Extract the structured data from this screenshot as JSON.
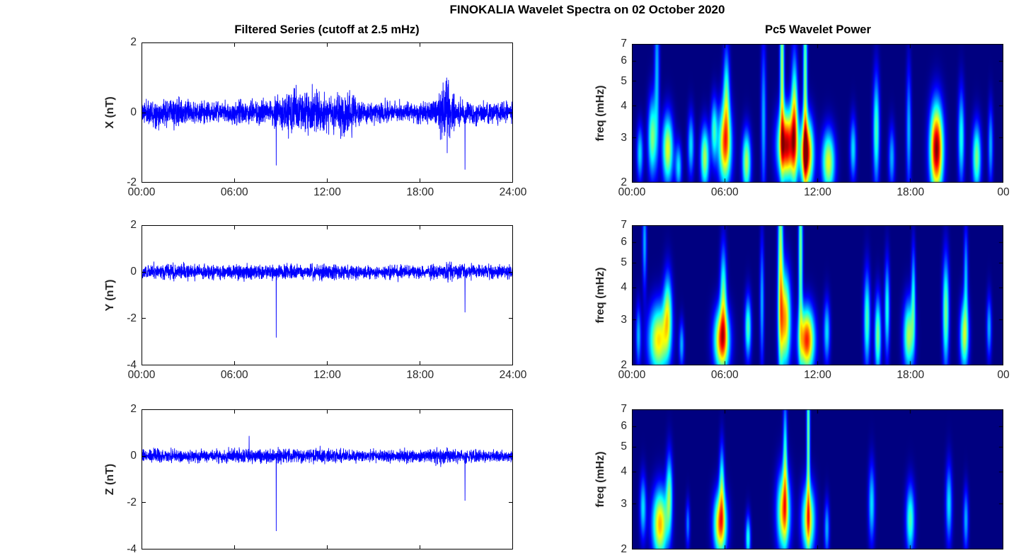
{
  "figure": {
    "title": "FINOKALIA Wavelet Spectra on 02 October 2020",
    "left_column_title": "Filtered Series (cutoff at 2.5 mHz)",
    "right_column_title": "Pc5 Wavelet Power",
    "colors": {
      "background": "#ffffff",
      "line": "#0000ff",
      "axis": "#000000",
      "text": "#262626",
      "heatmap_low": "#00007f"
    }
  },
  "chart_data": [
    {
      "id": "x-series",
      "type": "line",
      "ylabel": "X (nT)",
      "xlim_hours": [
        0,
        24
      ],
      "ylim": [
        -2,
        2
      ],
      "yticks": [
        2,
        0,
        -2
      ],
      "tick_hours": [
        0,
        6,
        12,
        18,
        24
      ],
      "xticks": [
        {
          "hour": 0,
          "label": "00:00"
        },
        {
          "hour": 6,
          "label": "06:00"
        },
        {
          "hour": 12,
          "label": "12:00"
        },
        {
          "hour": 18,
          "label": "18:00"
        },
        {
          "hour": 24,
          "label": "24:00"
        }
      ],
      "noise_envelope": [
        [
          0,
          0.32
        ],
        [
          1.8,
          0.4
        ],
        [
          2.4,
          0.45
        ],
        [
          3,
          0.32
        ],
        [
          5.5,
          0.32
        ],
        [
          6.2,
          0.38
        ],
        [
          8,
          0.3
        ],
        [
          9,
          0.5
        ],
        [
          9.8,
          0.65
        ],
        [
          10.5,
          0.55
        ],
        [
          11,
          0.7
        ],
        [
          11.8,
          0.6
        ],
        [
          12.3,
          0.55
        ],
        [
          13,
          0.7
        ],
        [
          13.6,
          0.55
        ],
        [
          14.2,
          0.38
        ],
        [
          15,
          0.3
        ],
        [
          18,
          0.3
        ],
        [
          18.8,
          0.4
        ],
        [
          19.3,
          0.7
        ],
        [
          19.6,
          1.0
        ],
        [
          19.9,
          0.8
        ],
        [
          20.3,
          0.45
        ],
        [
          21,
          0.35
        ],
        [
          22,
          0.3
        ],
        [
          24,
          0.3
        ]
      ],
      "spikes": [
        [
          8.7,
          -1.5
        ],
        [
          20.9,
          -1.62
        ]
      ],
      "seed": 11
    },
    {
      "id": "y-series",
      "type": "line",
      "ylabel": "Y (nT)",
      "xlim_hours": [
        0,
        24
      ],
      "ylim": [
        -4,
        2
      ],
      "yticks": [
        2,
        0,
        -2,
        -4
      ],
      "tick_hours": [
        0,
        6,
        12,
        18,
        24
      ],
      "xticks": [
        {
          "hour": 0,
          "label": "00:00"
        },
        {
          "hour": 6,
          "label": "06:00"
        },
        {
          "hour": 12,
          "label": "12:00"
        },
        {
          "hour": 18,
          "label": "18:00"
        },
        {
          "hour": 24,
          "label": "24:00"
        }
      ],
      "noise_envelope": [
        [
          0,
          0.3
        ],
        [
          2,
          0.35
        ],
        [
          3,
          0.3
        ],
        [
          5.5,
          0.3
        ],
        [
          6,
          0.35
        ],
        [
          8,
          0.28
        ],
        [
          9.5,
          0.35
        ],
        [
          10.5,
          0.3
        ],
        [
          11.5,
          0.35
        ],
        [
          13,
          0.33
        ],
        [
          14,
          0.28
        ],
        [
          18,
          0.28
        ],
        [
          19,
          0.32
        ],
        [
          19.6,
          0.42
        ],
        [
          20.2,
          0.33
        ],
        [
          21,
          0.3
        ],
        [
          24,
          0.28
        ]
      ],
      "spikes": [
        [
          8.7,
          -2.8
        ],
        [
          20.9,
          -1.72
        ]
      ],
      "seed": 22
    },
    {
      "id": "z-series",
      "type": "line",
      "ylabel": "Z (nT)",
      "xlim_hours": [
        0,
        24
      ],
      "ylim": [
        -4,
        2
      ],
      "yticks": [
        2,
        0,
        -2,
        -4
      ],
      "tick_hours": [
        0,
        6,
        12,
        18,
        24
      ],
      "xticks": [],
      "noise_envelope": [
        [
          0,
          0.26
        ],
        [
          2,
          0.3
        ],
        [
          3,
          0.26
        ],
        [
          5.5,
          0.28
        ],
        [
          6,
          0.32
        ],
        [
          7,
          0.27
        ],
        [
          9.5,
          0.32
        ],
        [
          10.5,
          0.3
        ],
        [
          11.5,
          0.35
        ],
        [
          12.5,
          0.3
        ],
        [
          14,
          0.25
        ],
        [
          18,
          0.25
        ],
        [
          19,
          0.3
        ],
        [
          19.6,
          0.4
        ],
        [
          20.2,
          0.3
        ],
        [
          21,
          0.27
        ],
        [
          24,
          0.25
        ]
      ],
      "spikes": [
        [
          8.7,
          -3.2
        ],
        [
          20.9,
          -1.9
        ],
        [
          6.95,
          0.85
        ]
      ],
      "seed": 33
    },
    {
      "id": "x-wavelet",
      "type": "heatmap",
      "ylabel": "freq (mHz)",
      "xlim_hours": [
        0,
        24
      ],
      "flim_mhz": [
        2,
        7
      ],
      "yscale": "log",
      "yticks": [
        7,
        6,
        5,
        4,
        3,
        2
      ],
      "tick_hours": [
        0,
        6,
        12,
        18,
        24
      ],
      "xticks": [
        {
          "hour": 0,
          "label": "00:00"
        },
        {
          "hour": 6,
          "label": "06:00"
        },
        {
          "hour": 12,
          "label": "12:00"
        },
        {
          "hour": 18,
          "label": "18:00"
        },
        {
          "hour": 24,
          "label": "00"
        }
      ],
      "colormap": "jet",
      "blobs": [
        [
          0.5,
          2.6,
          0.15,
          0.18,
          0.35
        ],
        [
          1.3,
          3.0,
          0.2,
          0.25,
          0.5
        ],
        [
          1.6,
          5.5,
          0.12,
          0.5,
          0.3
        ],
        [
          2.3,
          2.7,
          0.25,
          0.22,
          0.6
        ],
        [
          3.0,
          2.3,
          0.15,
          0.15,
          0.35
        ],
        [
          3.8,
          2.8,
          0.15,
          0.2,
          0.35
        ],
        [
          4.7,
          2.5,
          0.2,
          0.2,
          0.55
        ],
        [
          5.3,
          3.2,
          0.15,
          0.2,
          0.4
        ],
        [
          6.0,
          2.8,
          0.3,
          0.25,
          0.75
        ],
        [
          6.1,
          4.5,
          0.15,
          0.3,
          0.4
        ],
        [
          7.4,
          2.4,
          0.2,
          0.2,
          0.55
        ],
        [
          8.5,
          3.5,
          0.12,
          0.5,
          0.3
        ],
        [
          9.7,
          5.5,
          0.1,
          0.6,
          0.55
        ],
        [
          10.0,
          2.8,
          0.4,
          0.22,
          0.95
        ],
        [
          10.5,
          3.5,
          0.15,
          0.4,
          0.6
        ],
        [
          11.2,
          5.0,
          0.1,
          0.7,
          0.5
        ],
        [
          11.3,
          2.6,
          0.3,
          0.22,
          0.9
        ],
        [
          12.7,
          2.4,
          0.3,
          0.2,
          0.6
        ],
        [
          14.3,
          2.7,
          0.15,
          0.2,
          0.35
        ],
        [
          15.8,
          3.2,
          0.15,
          0.35,
          0.45
        ],
        [
          16.8,
          2.5,
          0.15,
          0.2,
          0.3
        ],
        [
          17.9,
          3.2,
          0.12,
          0.4,
          0.3
        ],
        [
          19.7,
          2.7,
          0.3,
          0.28,
          1.0
        ],
        [
          21.3,
          3.0,
          0.15,
          0.3,
          0.4
        ],
        [
          22.3,
          2.5,
          0.2,
          0.22,
          0.5
        ],
        [
          23.2,
          2.8,
          0.12,
          0.25,
          0.3
        ]
      ]
    },
    {
      "id": "y-wavelet",
      "type": "heatmap",
      "ylabel": "freq (mHz)",
      "xlim_hours": [
        0,
        24
      ],
      "flim_mhz": [
        2,
        7
      ],
      "yscale": "log",
      "yticks": [
        7,
        6,
        5,
        4,
        3,
        2
      ],
      "tick_hours": [
        0,
        6,
        12,
        18,
        24
      ],
      "xticks": [
        {
          "hour": 0,
          "label": "00:00"
        },
        {
          "hour": 6,
          "label": "06:00"
        },
        {
          "hour": 12,
          "label": "12:00"
        },
        {
          "hour": 18,
          "label": "18:00"
        },
        {
          "hour": 24,
          "label": "00"
        }
      ],
      "colormap": "jet",
      "blobs": [
        [
          0.4,
          2.6,
          0.12,
          0.2,
          0.3
        ],
        [
          0.8,
          6.0,
          0.1,
          0.3,
          0.3
        ],
        [
          1.7,
          2.5,
          0.45,
          0.22,
          0.65
        ],
        [
          2.3,
          3.2,
          0.2,
          0.25,
          0.5
        ],
        [
          3.2,
          2.4,
          0.12,
          0.15,
          0.3
        ],
        [
          5.8,
          2.5,
          0.35,
          0.2,
          0.8
        ],
        [
          5.9,
          3.8,
          0.15,
          0.3,
          0.45
        ],
        [
          7.5,
          2.8,
          0.15,
          0.2,
          0.45
        ],
        [
          8.4,
          3.5,
          0.1,
          0.4,
          0.3
        ],
        [
          9.6,
          5.0,
          0.12,
          0.7,
          0.55
        ],
        [
          9.9,
          3.0,
          0.25,
          0.3,
          0.7
        ],
        [
          10.9,
          5.5,
          0.1,
          0.6,
          0.5
        ],
        [
          11.3,
          2.5,
          0.35,
          0.2,
          0.85
        ],
        [
          12.6,
          2.7,
          0.15,
          0.2,
          0.35
        ],
        [
          15.2,
          3.0,
          0.15,
          0.3,
          0.45
        ],
        [
          15.9,
          2.6,
          0.15,
          0.25,
          0.5
        ],
        [
          16.5,
          3.3,
          0.12,
          0.3,
          0.4
        ],
        [
          17.9,
          2.6,
          0.25,
          0.22,
          0.55
        ],
        [
          18.2,
          3.8,
          0.1,
          0.3,
          0.35
        ],
        [
          20.3,
          3.2,
          0.15,
          0.35,
          0.5
        ],
        [
          21.5,
          2.6,
          0.2,
          0.22,
          0.55
        ],
        [
          21.6,
          4.5,
          0.1,
          0.3,
          0.3
        ],
        [
          23.1,
          2.8,
          0.12,
          0.2,
          0.3
        ]
      ]
    },
    {
      "id": "z-wavelet",
      "type": "heatmap",
      "ylabel": "freq (mHz)",
      "xlim_hours": [
        0,
        24
      ],
      "flim_mhz": [
        2,
        7
      ],
      "yscale": "log",
      "yticks": [
        7,
        6,
        5,
        4,
        3,
        2
      ],
      "tick_hours": [
        0,
        6,
        12,
        18,
        24
      ],
      "xticks": [],
      "colormap": "jet",
      "blobs": [
        [
          0.7,
          2.9,
          0.15,
          0.2,
          0.35
        ],
        [
          1.8,
          2.5,
          0.35,
          0.22,
          0.7
        ],
        [
          2.4,
          3.3,
          0.15,
          0.25,
          0.45
        ],
        [
          3.6,
          2.5,
          0.1,
          0.15,
          0.25
        ],
        [
          5.7,
          2.5,
          0.3,
          0.2,
          0.75
        ],
        [
          5.8,
          3.6,
          0.12,
          0.25,
          0.4
        ],
        [
          7.5,
          2.2,
          0.12,
          0.15,
          0.4
        ],
        [
          9.8,
          2.8,
          0.3,
          0.25,
          0.7
        ],
        [
          9.9,
          4.5,
          0.1,
          0.4,
          0.4
        ],
        [
          11.4,
          5.5,
          0.08,
          0.6,
          0.5
        ],
        [
          11.4,
          2.6,
          0.3,
          0.22,
          0.65
        ],
        [
          12.6,
          2.4,
          0.12,
          0.18,
          0.3
        ],
        [
          15.5,
          3.0,
          0.15,
          0.25,
          0.35
        ],
        [
          18.0,
          2.6,
          0.2,
          0.22,
          0.45
        ],
        [
          20.5,
          3.0,
          0.15,
          0.25,
          0.35
        ],
        [
          21.6,
          2.6,
          0.12,
          0.2,
          0.3
        ]
      ]
    }
  ]
}
